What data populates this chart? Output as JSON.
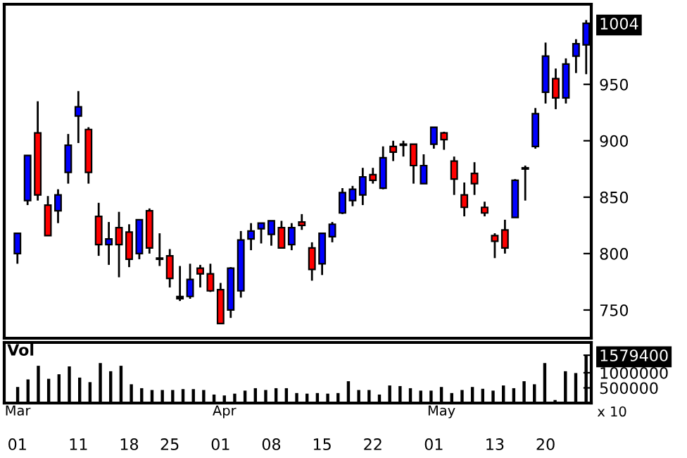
{
  "chart_data": [
    {
      "type": "candlestick",
      "categories": [
        "01",
        null,
        null,
        null,
        null,
        null,
        "11",
        null,
        null,
        null,
        null,
        "18",
        null,
        null,
        null,
        "25",
        null,
        null,
        null,
        null,
        "01",
        null,
        null,
        null,
        null,
        "08",
        null,
        null,
        null,
        null,
        "15",
        null,
        null,
        null,
        null,
        "22",
        null,
        null,
        null,
        null,
        null,
        "01",
        null,
        null,
        null,
        null,
        null,
        "13",
        null,
        null,
        null,
        null,
        "20",
        null,
        null,
        null,
        null
      ],
      "ohlc": [
        [
          800,
          818,
          791,
          818
        ],
        [
          847,
          887,
          843,
          887
        ],
        [
          907,
          935,
          847,
          852
        ],
        [
          843,
          851,
          816,
          816
        ],
        [
          838,
          857,
          827,
          852
        ],
        [
          872,
          906,
          862,
          896
        ],
        [
          922,
          944,
          898,
          930
        ],
        [
          910,
          912,
          862,
          872
        ],
        [
          833,
          845,
          798,
          808
        ],
        [
          808,
          828,
          790,
          813
        ],
        [
          823,
          837,
          779,
          808
        ],
        [
          819,
          826,
          788,
          795
        ],
        [
          800,
          830,
          795,
          830
        ],
        [
          838,
          840,
          800,
          805
        ],
        [
          796,
          818,
          789,
          795
        ],
        [
          798,
          804,
          770,
          778
        ],
        [
          762,
          789,
          758,
          760
        ],
        [
          762,
          791,
          760,
          777
        ],
        [
          787,
          790,
          770,
          782
        ],
        [
          782,
          791,
          766,
          767
        ],
        [
          768,
          774,
          738,
          738
        ],
        [
          750,
          788,
          743,
          787
        ],
        [
          767,
          820,
          761,
          812
        ],
        [
          813,
          827,
          803,
          820
        ],
        [
          822,
          827,
          809,
          827
        ],
        [
          817,
          829,
          807,
          829
        ],
        [
          823,
          829,
          805,
          805
        ],
        [
          808,
          827,
          803,
          823
        ],
        [
          828,
          835,
          821,
          825
        ],
        [
          805,
          810,
          776,
          786
        ],
        [
          791,
          818,
          781,
          818
        ],
        [
          815,
          828,
          810,
          826
        ],
        [
          836,
          858,
          835,
          854
        ],
        [
          847,
          860,
          842,
          857
        ],
        [
          852,
          876,
          843,
          868
        ],
        [
          870,
          876,
          862,
          865
        ],
        [
          858,
          895,
          857,
          885
        ],
        [
          895,
          900,
          882,
          890
        ],
        [
          897,
          900,
          886,
          896
        ],
        [
          897,
          897,
          862,
          878
        ],
        [
          862,
          888,
          862,
          878
        ],
        [
          897,
          912,
          893,
          912
        ],
        [
          907,
          908,
          892,
          901
        ],
        [
          882,
          886,
          852,
          866
        ],
        [
          852,
          863,
          833,
          841
        ],
        [
          871,
          881,
          852,
          862
        ],
        [
          841,
          846,
          833,
          836
        ],
        [
          816,
          818,
          796,
          811
        ],
        [
          821,
          830,
          800,
          805
        ],
        [
          832,
          866,
          832,
          865
        ],
        [
          875,
          878,
          847,
          876
        ],
        [
          895,
          929,
          893,
          924
        ],
        [
          943,
          987,
          933,
          975
        ],
        [
          955,
          964,
          928,
          938
        ],
        [
          938,
          973,
          933,
          968
        ],
        [
          975,
          990,
          960,
          986
        ],
        [
          985,
          1007,
          959,
          1004
        ]
      ],
      "colors": [
        "#0000ff",
        "#0000ff",
        "#ff0000",
        "#ff0000",
        "#0000ff",
        "#0000ff",
        "#0000ff",
        "#ff0000",
        "#ff0000",
        "#0000ff",
        "#ff0000",
        "#ff0000",
        "#0000ff",
        "#ff0000",
        "#000000",
        "#ff0000",
        "#000000",
        "#0000ff",
        "#ff0000",
        "#ff0000",
        "#ff0000",
        "#0000ff",
        "#0000ff",
        "#0000ff",
        "#0000ff",
        "#0000ff",
        "#ff0000",
        "#0000ff",
        "#ff0000",
        "#ff0000",
        "#0000ff",
        "#0000ff",
        "#0000ff",
        "#0000ff",
        "#0000ff",
        "#ff0000",
        "#0000ff",
        "#ff0000",
        "#000000",
        "#ff0000",
        "#0000ff",
        "#0000ff",
        "#ff0000",
        "#ff0000",
        "#ff0000",
        "#ff0000",
        "#ff0000",
        "#ff0000",
        "#ff0000",
        "#0000ff",
        "#000000",
        "#0000ff",
        "#0000ff",
        "#ff0000",
        "#0000ff",
        "#0000ff",
        "#0000ff"
      ],
      "ylim": [
        725,
        1021
      ],
      "yticks": [
        750,
        800,
        850,
        900,
        950,
        1004
      ]
    },
    {
      "type": "bar",
      "title": "Vol",
      "categories": [
        "Mar",
        null,
        null,
        null,
        null,
        null,
        null,
        null,
        null,
        null,
        null,
        null,
        null,
        null,
        null,
        null,
        null,
        null,
        null,
        null,
        "Apr",
        null,
        null,
        null,
        null,
        null,
        null,
        null,
        null,
        null,
        null,
        null,
        null,
        null,
        null,
        null,
        null,
        null,
        null,
        null,
        null,
        "May",
        null,
        null,
        null,
        null,
        null,
        null,
        null,
        null,
        null,
        null,
        null,
        null,
        null,
        null
      ],
      "values": [
        530000,
        780000,
        1230000,
        800000,
        950000,
        1210000,
        840000,
        690000,
        1320000,
        1050000,
        1230000,
        620000,
        490000,
        430000,
        430000,
        430000,
        460000,
        460000,
        430000,
        280000,
        250000,
        310000,
        410000,
        490000,
        430000,
        490000,
        490000,
        330000,
        310000,
        330000,
        310000,
        330000,
        720000,
        430000,
        430000,
        280000,
        580000,
        560000,
        490000,
        410000,
        410000,
        530000,
        330000,
        430000,
        530000,
        470000,
        410000,
        580000,
        490000,
        720000,
        620000,
        1320000,
        100000,
        1050000,
        990000,
        1579400
      ],
      "color": "#000000",
      "ylim": [
        0,
        2000000
      ],
      "yticks": [
        500000,
        1000000,
        1579400
      ],
      "annotations": [
        "x 10"
      ]
    }
  ]
}
